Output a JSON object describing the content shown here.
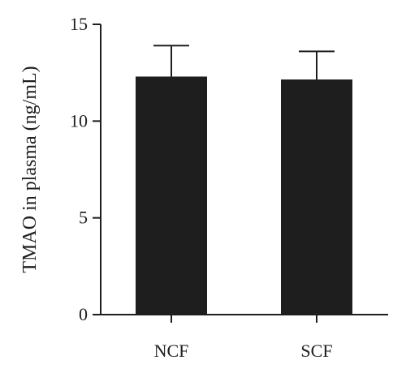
{
  "chart_data": {
    "type": "bar",
    "title": "",
    "xlabel": "",
    "ylabel": "TMAO in plasma (ng/mL)",
    "categories": [
      "NCF",
      "SCF"
    ],
    "series": [
      {
        "values": [
          12.3,
          12.15
        ],
        "error": [
          1.6,
          1.45
        ]
      }
    ],
    "ylim": [
      0,
      15
    ],
    "yticks": [
      0,
      5,
      10,
      15
    ],
    "ytick_labels": [
      "0",
      "5",
      "10",
      "15"
    ],
    "grid": false,
    "bar_color": "#1e1e1e",
    "axis_color": "#1e1e1e"
  }
}
